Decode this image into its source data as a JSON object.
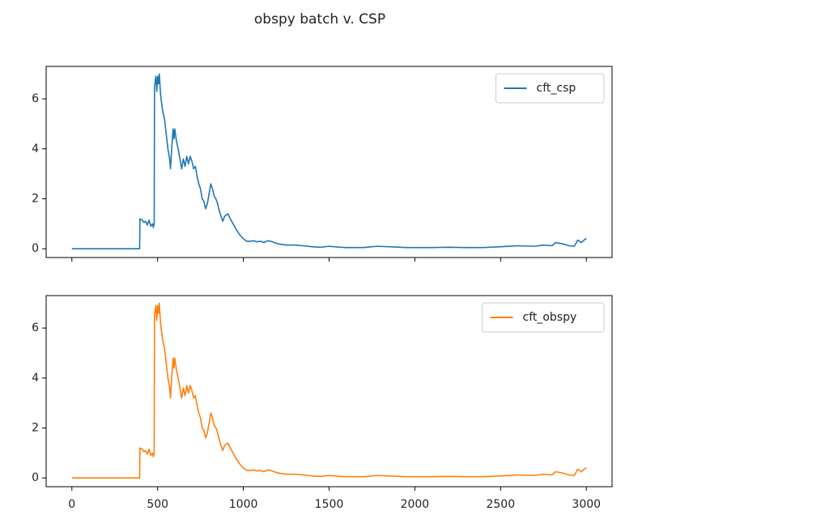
{
  "title": "obspy batch v. CSP",
  "chart_data": [
    {
      "type": "line",
      "x": [
        0,
        395,
        397,
        410,
        420,
        430,
        440,
        450,
        460,
        470,
        475,
        480,
        482,
        490,
        495,
        500,
        505,
        510,
        515,
        520,
        530,
        540,
        550,
        560,
        570,
        575,
        580,
        590,
        595,
        600,
        610,
        620,
        630,
        640,
        650,
        660,
        670,
        680,
        690,
        700,
        710,
        720,
        730,
        740,
        750,
        760,
        770,
        780,
        790,
        800,
        810,
        820,
        830,
        840,
        850,
        860,
        870,
        880,
        890,
        900,
        910,
        920,
        940,
        960,
        980,
        1000,
        1020,
        1040,
        1060,
        1080,
        1100,
        1120,
        1140,
        1160,
        1200,
        1250,
        1300,
        1350,
        1400,
        1450,
        1500,
        1550,
        1600,
        1700,
        1780,
        1850,
        1950,
        2100,
        2200,
        2300,
        2400,
        2500,
        2600,
        2700,
        2750,
        2800,
        2820,
        2860,
        2900,
        2930,
        2950,
        2970,
        3000
      ],
      "series": [
        {
          "name": "cft_csp",
          "color": "#1f77b4",
          "values": [
            0,
            0,
            1.2,
            1.15,
            1.05,
            1.1,
            0.95,
            1.15,
            0.9,
            1.0,
            0.85,
            1.0,
            6.5,
            6.9,
            6.3,
            6.9,
            6.6,
            7.0,
            6.4,
            6.0,
            5.5,
            5.2,
            4.6,
            4.0,
            3.6,
            3.2,
            3.8,
            4.8,
            4.4,
            4.8,
            4.3,
            4.0,
            3.6,
            3.2,
            3.6,
            3.3,
            3.7,
            3.4,
            3.7,
            3.5,
            3.2,
            3.3,
            2.9,
            2.6,
            2.4,
            2.0,
            1.9,
            1.6,
            1.8,
            2.2,
            2.6,
            2.4,
            2.1,
            2.0,
            1.8,
            1.5,
            1.3,
            1.1,
            1.3,
            1.35,
            1.4,
            1.25,
            1.0,
            0.75,
            0.55,
            0.4,
            0.3,
            0.3,
            0.32,
            0.28,
            0.3,
            0.25,
            0.32,
            0.3,
            0.2,
            0.15,
            0.15,
            0.12,
            0.08,
            0.06,
            0.1,
            0.07,
            0.05,
            0.05,
            0.1,
            0.08,
            0.05,
            0.05,
            0.06,
            0.05,
            0.05,
            0.08,
            0.12,
            0.1,
            0.15,
            0.12,
            0.25,
            0.2,
            0.12,
            0.1,
            0.35,
            0.25,
            0.42
          ]
        }
      ],
      "xlim": [
        -150,
        3150
      ],
      "ylim": [
        -0.35,
        7.3
      ],
      "xticks": [
        0,
        500,
        1000,
        1500,
        2000,
        2500,
        3000
      ],
      "yticks": [
        0,
        2,
        4,
        6
      ],
      "x_tick_labels": false,
      "legend": "upper-right"
    },
    {
      "type": "line",
      "x": [
        0,
        395,
        397,
        410,
        420,
        430,
        440,
        450,
        460,
        470,
        475,
        480,
        482,
        490,
        495,
        500,
        505,
        510,
        515,
        520,
        530,
        540,
        550,
        560,
        570,
        575,
        580,
        590,
        595,
        600,
        610,
        620,
        630,
        640,
        650,
        660,
        670,
        680,
        690,
        700,
        710,
        720,
        730,
        740,
        750,
        760,
        770,
        780,
        790,
        800,
        810,
        820,
        830,
        840,
        850,
        860,
        870,
        880,
        890,
        900,
        910,
        920,
        940,
        960,
        980,
        1000,
        1020,
        1040,
        1060,
        1080,
        1100,
        1120,
        1140,
        1160,
        1200,
        1250,
        1300,
        1350,
        1400,
        1450,
        1500,
        1550,
        1600,
        1700,
        1780,
        1850,
        1950,
        2100,
        2200,
        2300,
        2400,
        2500,
        2600,
        2700,
        2750,
        2800,
        2820,
        2860,
        2900,
        2930,
        2950,
        2970,
        3000
      ],
      "series": [
        {
          "name": "cft_obspy",
          "color": "#ff7f0e",
          "values": [
            0,
            0,
            1.2,
            1.15,
            1.05,
            1.1,
            0.95,
            1.15,
            0.9,
            1.0,
            0.85,
            1.0,
            6.5,
            6.9,
            6.3,
            6.9,
            6.6,
            7.0,
            6.4,
            6.0,
            5.5,
            5.2,
            4.6,
            4.0,
            3.6,
            3.2,
            3.8,
            4.8,
            4.4,
            4.8,
            4.3,
            4.0,
            3.6,
            3.2,
            3.6,
            3.3,
            3.7,
            3.4,
            3.7,
            3.5,
            3.2,
            3.3,
            2.9,
            2.6,
            2.4,
            2.0,
            1.9,
            1.6,
            1.8,
            2.2,
            2.6,
            2.4,
            2.1,
            2.0,
            1.8,
            1.5,
            1.3,
            1.1,
            1.3,
            1.35,
            1.4,
            1.25,
            1.0,
            0.75,
            0.55,
            0.4,
            0.3,
            0.3,
            0.32,
            0.28,
            0.3,
            0.25,
            0.32,
            0.3,
            0.2,
            0.15,
            0.15,
            0.12,
            0.08,
            0.06,
            0.1,
            0.07,
            0.05,
            0.05,
            0.1,
            0.08,
            0.05,
            0.05,
            0.06,
            0.05,
            0.05,
            0.08,
            0.12,
            0.1,
            0.15,
            0.12,
            0.25,
            0.2,
            0.12,
            0.1,
            0.35,
            0.25,
            0.42
          ]
        }
      ],
      "xlim": [
        -150,
        3150
      ],
      "ylim": [
        -0.35,
        7.3
      ],
      "xticks": [
        0,
        500,
        1000,
        1500,
        2000,
        2500,
        3000
      ],
      "yticks": [
        0,
        2,
        4,
        6
      ],
      "x_tick_labels": true,
      "legend": "upper-right"
    }
  ]
}
